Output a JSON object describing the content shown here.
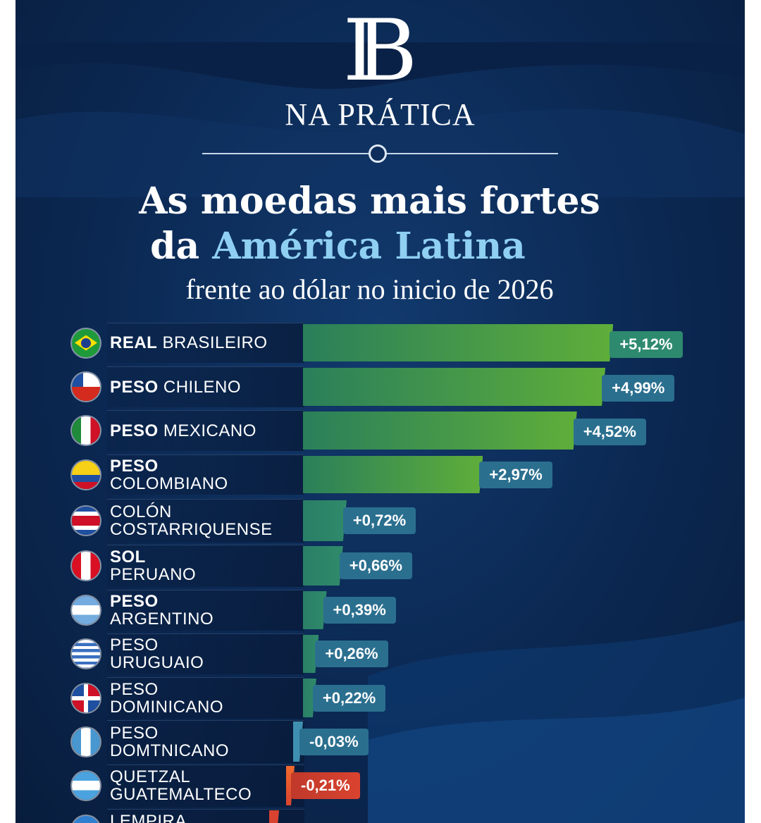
{
  "logo": {
    "monogram": "IB",
    "subtitle": "NA PRÁTICA"
  },
  "title": {
    "line1": "As moedas mais fortes",
    "line2_prefix": "da ",
    "line2_highlight": "América Latina",
    "line3": "frente ao dólar no inicio de 2026"
  },
  "chart_data": {
    "type": "bar",
    "orientation": "horizontal",
    "unit": "%",
    "colors": {
      "positive_strong": "#5fae3a",
      "positive_weak": "#2f8a6a",
      "negative": "#d9432f",
      "label_box": "#2b6f8f"
    },
    "categories": [
      {
        "bold": "REAL",
        "rest": "BRASILEIRO",
        "two_line": false,
        "flag": "brazil"
      },
      {
        "bold": "PESO",
        "rest": "CHILENO",
        "two_line": false,
        "flag": "chile"
      },
      {
        "bold": "PESO",
        "rest": "MEXICANO",
        "two_line": false,
        "flag": "mexico"
      },
      {
        "bold": "PESO",
        "rest": "COLOMBIANO",
        "two_line": true,
        "flag": "colombia"
      },
      {
        "bold": "",
        "rest": "COLÓN",
        "rest2": "COSTARRIQUENSE",
        "two_line": true,
        "flag": "costa-rica"
      },
      {
        "bold": "SOL",
        "rest": "PERUANO",
        "two_line": true,
        "flag": "peru"
      },
      {
        "bold": "PESO",
        "rest": "ARGENTINO",
        "two_line": true,
        "flag": "argentina"
      },
      {
        "bold": "",
        "rest": "PESO",
        "rest2": "URUGUAIO",
        "two_line": true,
        "flag": "uruguay"
      },
      {
        "bold": "",
        "rest": "PESO",
        "rest2": "DOMINICANO",
        "two_line": true,
        "flag": "dominican-republic"
      },
      {
        "bold": "",
        "rest": "PESO",
        "rest2": "DOMTNICANO",
        "two_line": true,
        "flag": "guatemala"
      },
      {
        "bold": "",
        "rest": "QUETZAL",
        "rest2": "GUATEMALTECO",
        "two_line": true,
        "flag": "honduras"
      },
      {
        "bold": "",
        "rest": "LEMPIRA",
        "rest2": "",
        "two_line": true,
        "flag": "blue"
      }
    ],
    "values": [
      5.12,
      4.99,
      4.52,
      2.97,
      0.72,
      0.66,
      0.39,
      0.26,
      0.22,
      -0.03,
      -0.21,
      null
    ],
    "labels": [
      "+5,12%",
      "+4,99%",
      "+4,52%",
      "+2,97%",
      "+0,72%",
      "+0,66%",
      "+0,39%",
      "+0,26%",
      "+0,22%",
      "-0,03%",
      "-0,21%",
      ""
    ]
  }
}
